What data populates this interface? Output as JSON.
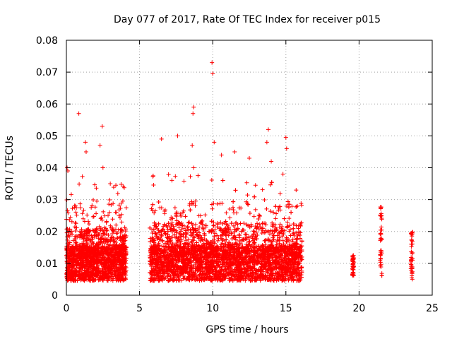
{
  "chart_data": {
    "type": "scatter",
    "title": "Day 077 of 2017, Rate Of TEC Index for receiver p015",
    "xlabel": "GPS time / hours",
    "ylabel": "ROTI / TECUs",
    "xlim": [
      0,
      25
    ],
    "ylim": [
      0,
      0.08
    ],
    "grid": true,
    "marker": "+",
    "color": "#ff0000",
    "x_ticks": [
      "0",
      "5",
      "10",
      "15",
      "20",
      "25"
    ],
    "y_ticks": [
      "0",
      "0.01",
      "0.02",
      "0.03",
      "0.04",
      "0.05",
      "0.06",
      "0.07",
      "0.08"
    ],
    "dense_segments": [
      {
        "start": 0.0,
        "end": 4.1,
        "median": 0.01,
        "spread": 0.007
      },
      {
        "start": 5.7,
        "end": 16.1,
        "median": 0.01,
        "spread": 0.008
      }
    ],
    "sparse_clusters": [
      {
        "x": 19.6,
        "ymin": 0.006,
        "ymax": 0.013
      },
      {
        "x": 21.5,
        "ymin": 0.006,
        "ymax": 0.029
      },
      {
        "x": 23.6,
        "ymin": 0.005,
        "ymax": 0.02
      }
    ],
    "outliers": [
      {
        "x": 0.05,
        "y": 0.04
      },
      {
        "x": 0.1,
        "y": 0.039
      },
      {
        "x": 0.85,
        "y": 0.057
      },
      {
        "x": 1.3,
        "y": 0.048
      },
      {
        "x": 1.35,
        "y": 0.045
      },
      {
        "x": 2.45,
        "y": 0.053
      },
      {
        "x": 2.3,
        "y": 0.047
      },
      {
        "x": 2.5,
        "y": 0.04
      },
      {
        "x": 3.0,
        "y": 0.035
      },
      {
        "x": 7.6,
        "y": 0.05
      },
      {
        "x": 6.5,
        "y": 0.049
      },
      {
        "x": 8.7,
        "y": 0.059
      },
      {
        "x": 8.65,
        "y": 0.057
      },
      {
        "x": 8.6,
        "y": 0.047
      },
      {
        "x": 8.7,
        "y": 0.04
      },
      {
        "x": 9.95,
        "y": 0.073
      },
      {
        "x": 10.0,
        "y": 0.0695
      },
      {
        "x": 10.1,
        "y": 0.048
      },
      {
        "x": 10.6,
        "y": 0.044
      },
      {
        "x": 11.5,
        "y": 0.045
      },
      {
        "x": 12.5,
        "y": 0.043
      },
      {
        "x": 13.8,
        "y": 0.052
      },
      {
        "x": 13.7,
        "y": 0.048
      },
      {
        "x": 14.0,
        "y": 0.042
      },
      {
        "x": 15.0,
        "y": 0.0495
      },
      {
        "x": 15.05,
        "y": 0.046
      },
      {
        "x": 14.8,
        "y": 0.038
      },
      {
        "x": 15.7,
        "y": 0.033
      }
    ]
  }
}
